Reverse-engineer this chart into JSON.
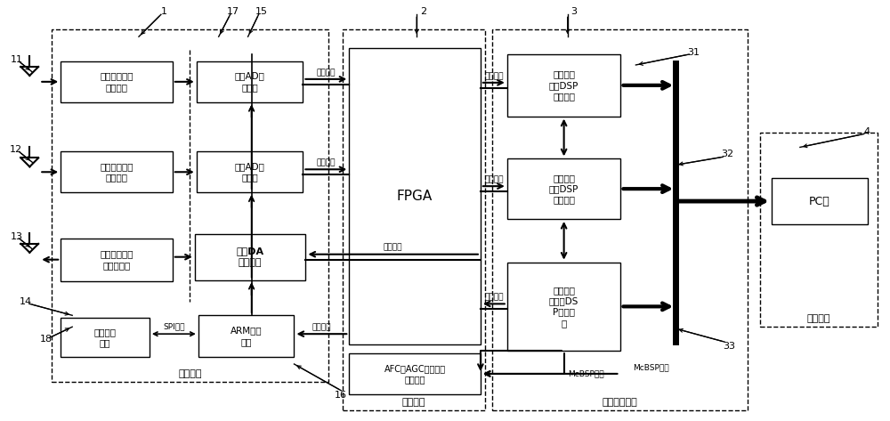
{
  "fig_width": 10.0,
  "fig_height": 4.73,
  "labels": {
    "rf_unit": "射频单元",
    "if_unit": "中频单元",
    "bb_unit": "基带处理单元",
    "ctrl_unit": "控制单元",
    "box1": "基站信号接收\n射频通道",
    "box2": "手机信号接收\n射频通道",
    "box3": "伪基站信号发\n送射频通道",
    "box4": "时钟管理\n单元",
    "box5": "第一AD采\n样模块",
    "box6": "第二AD采\n样模块",
    "box7": "发射DA\n变换模块",
    "box8": "ARM控制\n单元",
    "box9": "FPGA",
    "box10": "AFC、AGC、时钟等\n控制命令",
    "box11": "基站信号\n接收DSP\n处理模块",
    "box12": "手机信号\n接收DSP\n处理模块",
    "box13": "伪基站发\n射信号DS\nP处理模\n块",
    "box14": "PC机",
    "pj": "并行接口",
    "cj": "串行接口",
    "spi": "SPI接口",
    "mcbsp": "McBSP接口"
  }
}
